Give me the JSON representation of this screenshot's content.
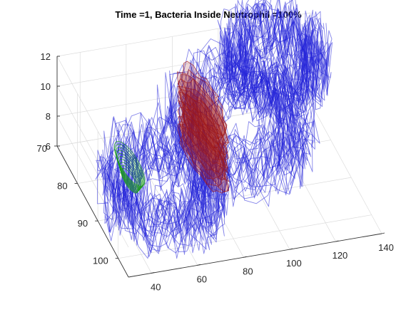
{
  "chart_data": {
    "type": "surface",
    "title": "Time =1, Bacteria Inside Neutrophil  =100%",
    "xlabel": "",
    "ylabel": "",
    "zlabel": "",
    "xlim": [
      30,
      140
    ],
    "ylim": [
      70,
      105
    ],
    "zlim": [
      6,
      12
    ],
    "xticks": [
      40,
      60,
      80,
      100,
      120,
      140
    ],
    "yticks": [
      70,
      80,
      90,
      100
    ],
    "zticks": [
      6,
      8,
      10,
      12
    ],
    "grid": true,
    "series": [
      {
        "color": "#2323d8",
        "opacity": 0.55
      },
      {
        "color": "#a01818",
        "opacity": 0.75
      },
      {
        "color": "#1a9a1a",
        "opacity": 0.8
      }
    ]
  }
}
